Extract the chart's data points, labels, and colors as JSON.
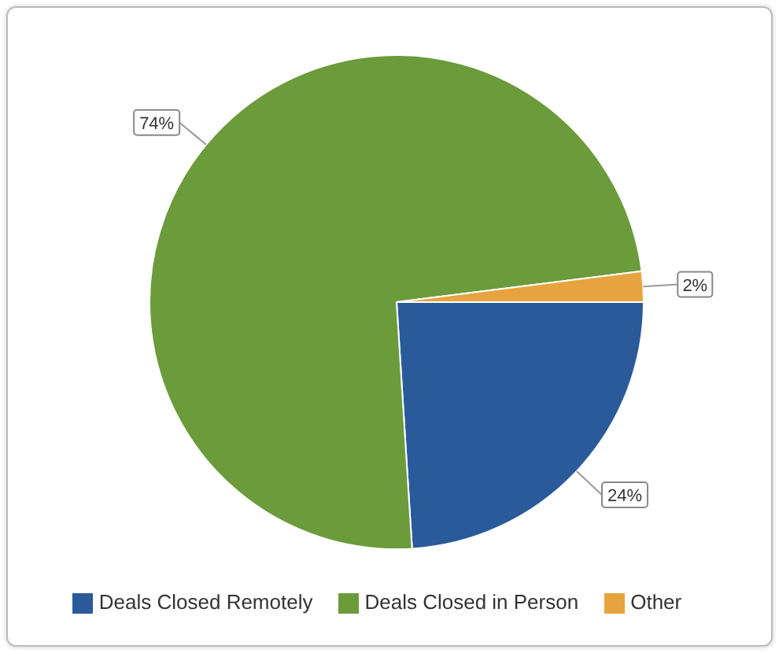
{
  "chart_data": {
    "type": "pie",
    "categories": [
      "Deals Closed Remotely",
      "Deals Closed in Person",
      "Other"
    ],
    "values": [
      24,
      74,
      2
    ],
    "colors": [
      "#2b5a9b",
      "#6b9b3b",
      "#e7a43e"
    ],
    "value_labels": [
      "24%",
      "74%",
      "2%"
    ],
    "legend": "bottom"
  }
}
